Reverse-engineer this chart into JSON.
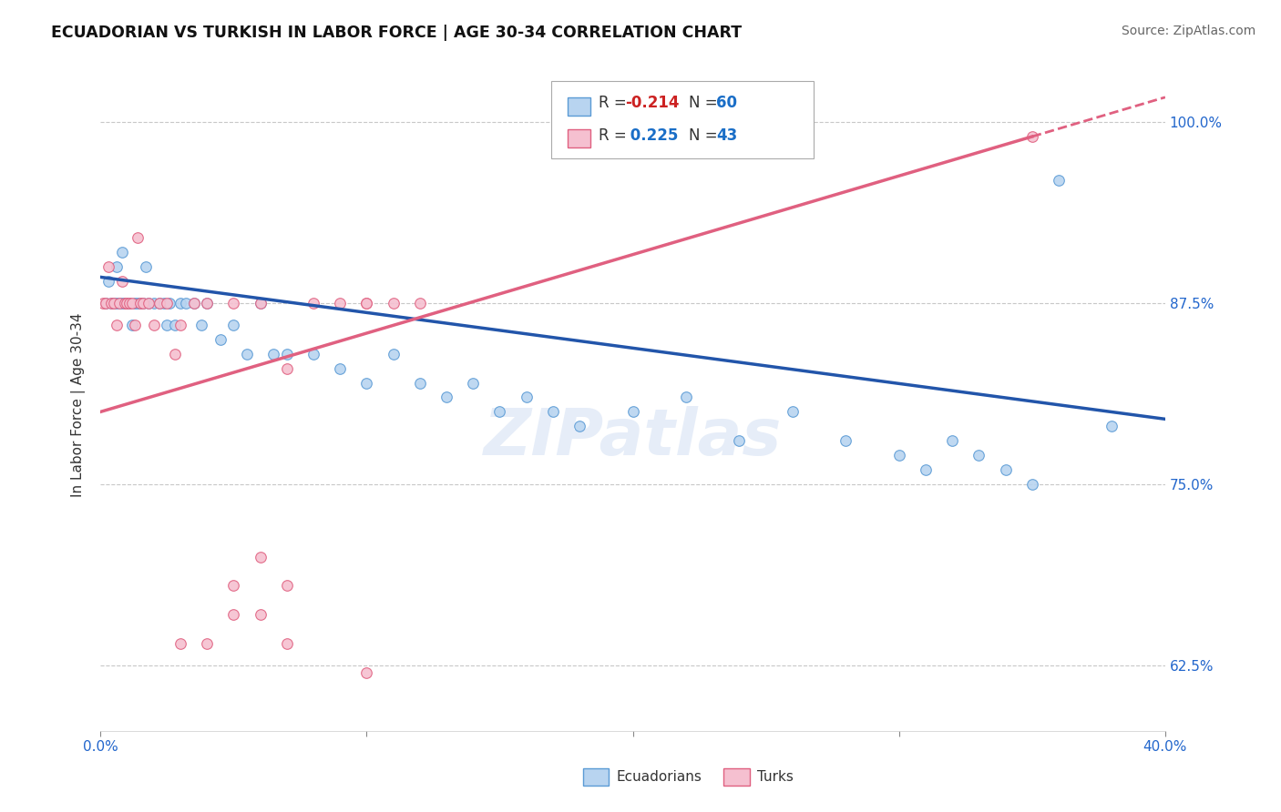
{
  "title": "ECUADORIAN VS TURKISH IN LABOR FORCE | AGE 30-34 CORRELATION CHART",
  "source_text": "Source: ZipAtlas.com",
  "ylabel": "In Labor Force | Age 30-34",
  "xlim": [
    0.0,
    0.4
  ],
  "ylim": [
    0.58,
    1.03
  ],
  "xtick_vals": [
    0.0,
    0.1,
    0.2,
    0.3,
    0.4
  ],
  "xtick_labels_show": [
    "0.0%",
    "",
    "",
    "",
    "40.0%"
  ],
  "ytick_vals": [
    0.625,
    0.75,
    0.875,
    1.0
  ],
  "ytick_labels": [
    "62.5%",
    "75.0%",
    "87.5%",
    "100.0%"
  ],
  "background_color": "#ffffff",
  "grid_color": "#c8c8c8",
  "ecuadorians_fill": "#b8d4f0",
  "ecuadorians_edge": "#5b9bd5",
  "turks_fill": "#f5c0d0",
  "turks_edge": "#e06080",
  "trendline_blue": "#2255aa",
  "trendline_pink": "#e06080",
  "R_blue": -0.214,
  "N_blue": 60,
  "R_pink": 0.225,
  "N_pink": 43,
  "marker_size": 70,
  "ecuadorians_x": [
    0.002,
    0.003,
    0.004,
    0.005,
    0.006,
    0.006,
    0.007,
    0.008,
    0.008,
    0.009,
    0.01,
    0.011,
    0.012,
    0.013,
    0.014,
    0.015,
    0.016,
    0.017,
    0.018,
    0.02,
    0.022,
    0.024,
    0.025,
    0.026,
    0.028,
    0.03,
    0.032,
    0.035,
    0.038,
    0.04,
    0.045,
    0.05,
    0.055,
    0.06,
    0.065,
    0.07,
    0.08,
    0.09,
    0.1,
    0.11,
    0.12,
    0.13,
    0.14,
    0.15,
    0.16,
    0.17,
    0.18,
    0.2,
    0.22,
    0.24,
    0.26,
    0.28,
    0.3,
    0.31,
    0.32,
    0.33,
    0.34,
    0.35,
    0.36,
    0.38
  ],
  "ecuadorians_y": [
    0.875,
    0.89,
    0.875,
    0.875,
    0.875,
    0.9,
    0.875,
    0.875,
    0.91,
    0.875,
    0.875,
    0.875,
    0.86,
    0.875,
    0.875,
    0.875,
    0.875,
    0.9,
    0.875,
    0.875,
    0.875,
    0.875,
    0.86,
    0.875,
    0.86,
    0.875,
    0.875,
    0.875,
    0.86,
    0.875,
    0.85,
    0.86,
    0.84,
    0.875,
    0.84,
    0.84,
    0.84,
    0.83,
    0.82,
    0.84,
    0.82,
    0.81,
    0.82,
    0.8,
    0.81,
    0.8,
    0.79,
    0.8,
    0.81,
    0.78,
    0.8,
    0.78,
    0.77,
    0.76,
    0.78,
    0.77,
    0.76,
    0.75,
    0.96,
    0.79
  ],
  "turks_x": [
    0.001,
    0.002,
    0.003,
    0.004,
    0.005,
    0.006,
    0.007,
    0.008,
    0.009,
    0.01,
    0.011,
    0.012,
    0.013,
    0.014,
    0.015,
    0.016,
    0.018,
    0.02,
    0.022,
    0.025,
    0.028,
    0.03,
    0.035,
    0.04,
    0.05,
    0.06,
    0.07,
    0.08,
    0.09,
    0.1,
    0.1,
    0.05,
    0.06,
    0.07,
    0.06,
    0.07,
    0.1,
    0.05,
    0.03,
    0.04,
    0.11,
    0.12,
    0.35
  ],
  "turks_y": [
    0.875,
    0.875,
    0.9,
    0.875,
    0.875,
    0.86,
    0.875,
    0.89,
    0.875,
    0.875,
    0.875,
    0.875,
    0.86,
    0.92,
    0.875,
    0.875,
    0.875,
    0.86,
    0.875,
    0.875,
    0.84,
    0.86,
    0.875,
    0.875,
    0.875,
    0.875,
    0.83,
    0.875,
    0.875,
    0.875,
    0.875,
    0.68,
    0.7,
    0.68,
    0.66,
    0.64,
    0.62,
    0.66,
    0.64,
    0.64,
    0.875,
    0.875,
    0.99
  ]
}
